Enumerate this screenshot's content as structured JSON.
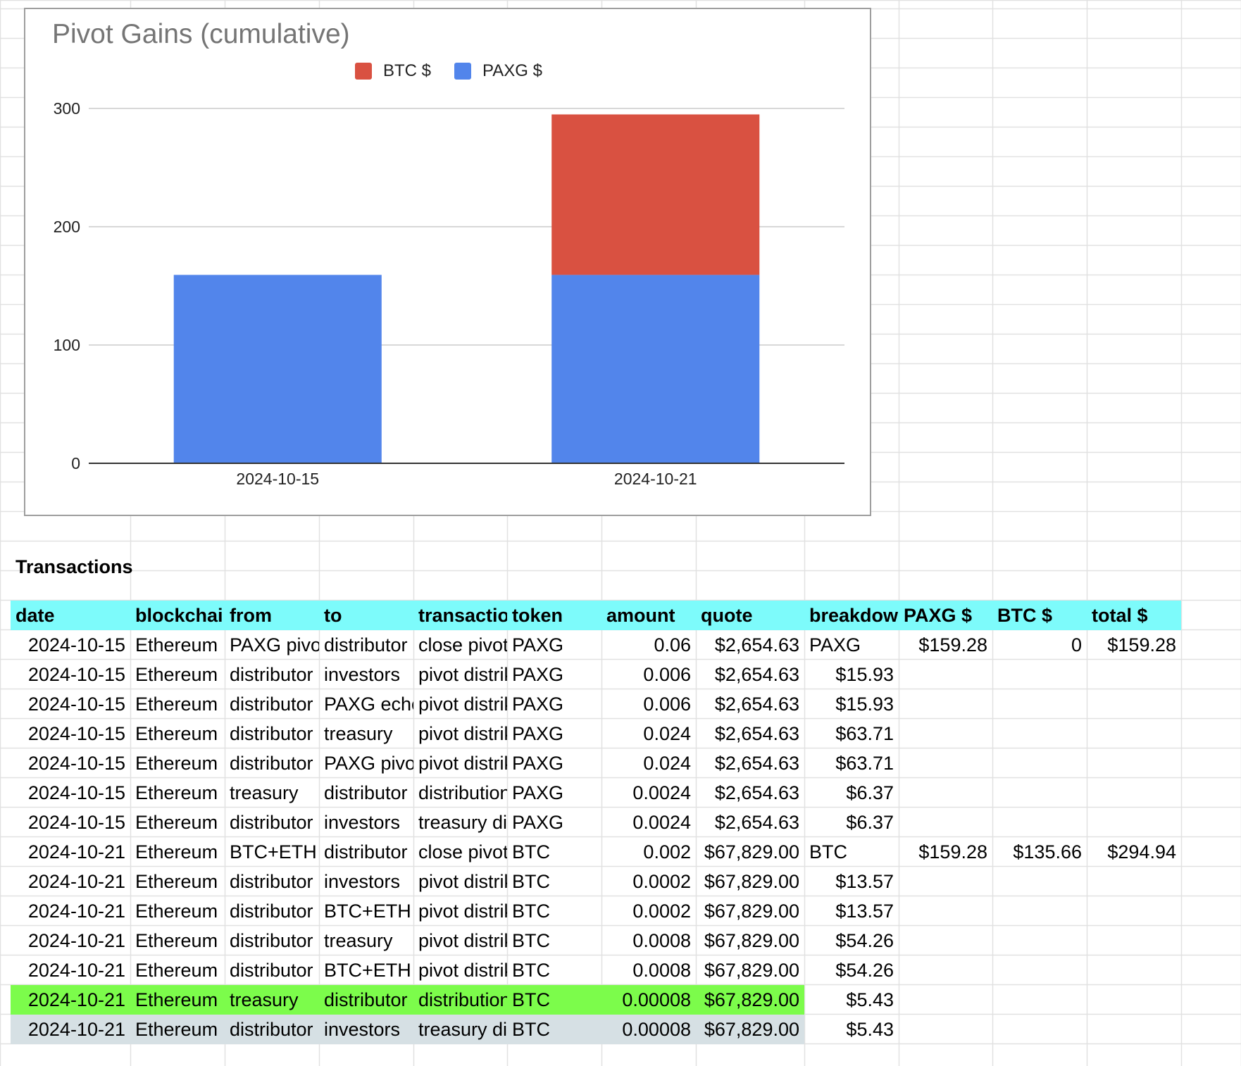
{
  "colors": {
    "header_bg": "#7dfbfb",
    "highlight_green": "#7cfc4b",
    "highlight_gray": "#d6e0e4",
    "btc": "#d95141",
    "paxg": "#5285eb",
    "gridline": "#e1e1e1"
  },
  "chart_data": {
    "type": "bar",
    "stacked": true,
    "title": "Pivot Gains (cumulative)",
    "categories": [
      "2024-10-15",
      "2024-10-21"
    ],
    "series": [
      {
        "name": "BTC $",
        "color": "#d95141",
        "values": [
          0,
          135.66
        ]
      },
      {
        "name": "PAXG $",
        "color": "#5285eb",
        "values": [
          159.28,
          159.28
        ]
      }
    ],
    "ylim": [
      0,
      300
    ],
    "yticks": [
      "0",
      "100",
      "200",
      "300"
    ],
    "grid": true,
    "legend_position": "top"
  },
  "section_title": "Transactions",
  "table": {
    "headers": [
      "date",
      "blockchai",
      "from",
      "to",
      "transactio",
      "token",
      "amount",
      "quote",
      "breakdow",
      "PAXG $",
      "BTC $",
      "total $"
    ],
    "rows": [
      [
        "2024-10-15",
        "Ethereum",
        "PAXG pivo",
        "distributor",
        "close pivot",
        "PAXG",
        "0.06",
        "$2,654.63",
        "PAXG",
        "$159.28",
        "0",
        "$159.28"
      ],
      [
        "2024-10-15",
        "Ethereum",
        "distributor",
        "investors",
        "pivot distrik",
        "PAXG",
        "0.006",
        "$2,654.63",
        "$15.93",
        "",
        "",
        ""
      ],
      [
        "2024-10-15",
        "Ethereum",
        "distributor",
        "PAXG echo",
        "pivot distrik",
        "PAXG",
        "0.006",
        "$2,654.63",
        "$15.93",
        "",
        "",
        ""
      ],
      [
        "2024-10-15",
        "Ethereum",
        "distributor",
        "treasury",
        "pivot distrik",
        "PAXG",
        "0.024",
        "$2,654.63",
        "$63.71",
        "",
        "",
        ""
      ],
      [
        "2024-10-15",
        "Ethereum",
        "distributor",
        "PAXG pivo",
        "pivot distrik",
        "PAXG",
        "0.024",
        "$2,654.63",
        "$63.71",
        "",
        "",
        ""
      ],
      [
        "2024-10-15",
        "Ethereum",
        "treasury",
        "distributor",
        "distribution",
        "PAXG",
        "0.0024",
        "$2,654.63",
        "$6.37",
        "",
        "",
        ""
      ],
      [
        "2024-10-15",
        "Ethereum",
        "distributor",
        "investors",
        "treasury di",
        "PAXG",
        "0.0024",
        "$2,654.63",
        "$6.37",
        "",
        "",
        ""
      ],
      [
        "2024-10-21",
        "Ethereum",
        "BTC+ETH",
        "distributor",
        "close pivot",
        "BTC",
        "0.002",
        "$67,829.00",
        "BTC",
        "$159.28",
        "$135.66",
        "$294.94"
      ],
      [
        "2024-10-21",
        "Ethereum",
        "distributor",
        "investors",
        "pivot distrik",
        "BTC",
        "0.0002",
        "$67,829.00",
        "$13.57",
        "",
        "",
        ""
      ],
      [
        "2024-10-21",
        "Ethereum",
        "distributor",
        "BTC+ETH",
        "pivot distrik",
        "BTC",
        "0.0002",
        "$67,829.00",
        "$13.57",
        "",
        "",
        ""
      ],
      [
        "2024-10-21",
        "Ethereum",
        "distributor",
        "treasury",
        "pivot distrik",
        "BTC",
        "0.0008",
        "$67,829.00",
        "$54.26",
        "",
        "",
        ""
      ],
      [
        "2024-10-21",
        "Ethereum",
        "distributor",
        "BTC+ETH",
        "pivot distrik",
        "BTC",
        "0.0008",
        "$67,829.00",
        "$54.26",
        "",
        "",
        ""
      ],
      [
        "2024-10-21",
        "Ethereum",
        "treasury",
        "distributor",
        "distribution",
        "BTC",
        "0.00008",
        "$67,829.00",
        "$5.43",
        "",
        "",
        ""
      ],
      [
        "2024-10-21",
        "Ethereum",
        "distributor",
        "investors",
        "treasury di",
        "BTC",
        "0.00008",
        "$67,829.00",
        "$5.43",
        "",
        "",
        ""
      ]
    ],
    "row_highlights": [
      null,
      null,
      null,
      null,
      null,
      null,
      null,
      null,
      null,
      null,
      null,
      null,
      "highlight_green",
      "highlight_gray"
    ]
  }
}
